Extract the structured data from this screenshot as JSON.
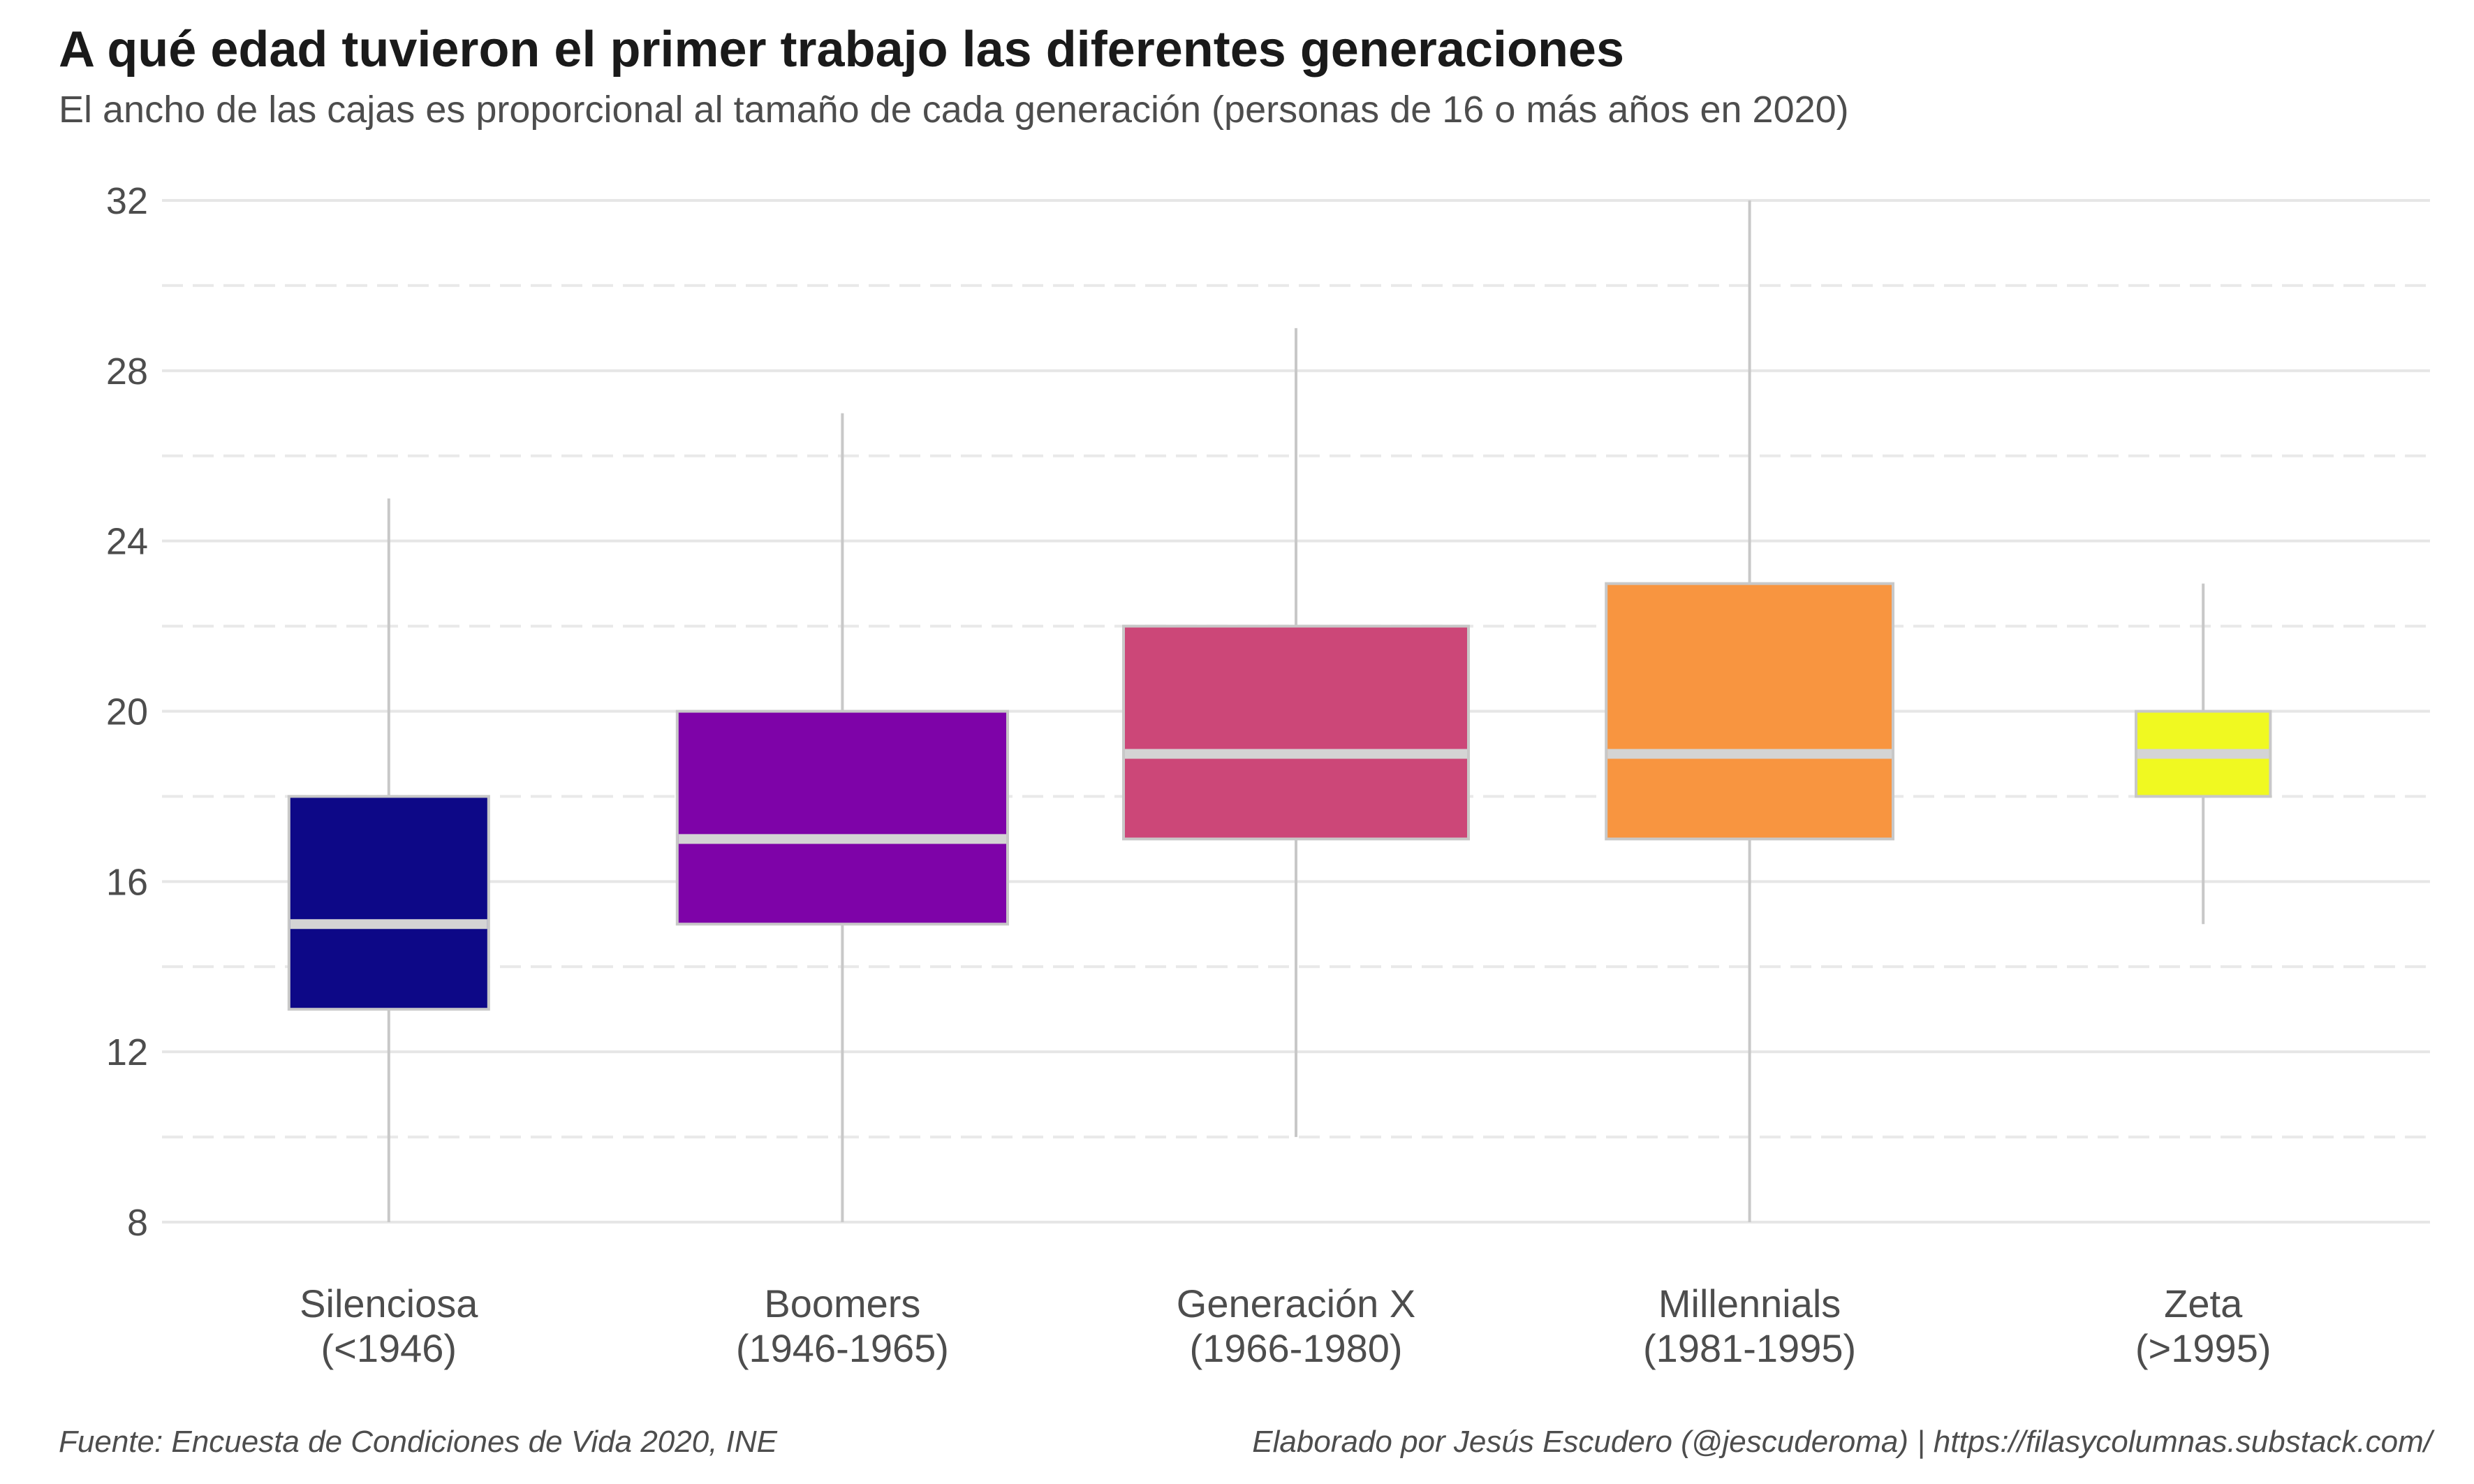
{
  "header": {
    "title": "A qué edad tuvieron el primer trabajo las diferentes generaciones",
    "subtitle": "El ancho de las cajas es proporcional al tamaño de cada generación (personas de 16 o más años en 2020)"
  },
  "footer": {
    "source": "Fuente: Encuesta de Condiciones de Vida 2020, INE",
    "credit": "Elaborado por Jesús Escudero (@jescuderoma) | https://filasycolumnas.substack.com/"
  },
  "colors": {
    "grid_major": "#e6e6e6",
    "grid_minor": "#e9e9e9",
    "whisker": "#c8c8c8",
    "box_border": "#c8c8c8",
    "median": "#d4d4d4",
    "axis_text": "#4d4d4d"
  },
  "chart_data": {
    "type": "boxplot",
    "title": "A qué edad tuvieron el primer trabajo las diferentes generaciones",
    "subtitle": "El ancho de las cajas es proporcional al tamaño de cada generación (personas de 16 o más años en 2020)",
    "xlabel": "",
    "ylabel": "",
    "ylim": [
      8,
      32
    ],
    "yticks": [
      8,
      12,
      16,
      20,
      24,
      28,
      32
    ],
    "grid": true,
    "legend": "none",
    "categories": [
      {
        "name": "Silenciosa",
        "years": "(<1946)",
        "min": 8,
        "q1": 13,
        "median": 15,
        "q3": 18,
        "max": 25,
        "relative_width": 0.55,
        "color": "#0d0887"
      },
      {
        "name": "Boomers",
        "years": "(1946-1965)",
        "min": 8,
        "q1": 15,
        "median": 17,
        "q3": 20,
        "max": 27,
        "relative_width": 0.91,
        "color": "#7e03a8"
      },
      {
        "name": "Generación X",
        "years": "(1966-1980)",
        "min": 10,
        "q1": 17,
        "median": 19,
        "q3": 22,
        "max": 29,
        "relative_width": 0.95,
        "color": "#cc4778"
      },
      {
        "name": "Millennials",
        "years": "(1981-1995)",
        "min": 8,
        "q1": 17,
        "median": 19,
        "q3": 23,
        "max": 32,
        "relative_width": 0.79,
        "color": "#f89540"
      },
      {
        "name": "Zeta",
        "years": "(>1995)",
        "min": 15,
        "q1": 18,
        "median": 19,
        "q3": 20,
        "max": 23,
        "relative_width": 0.37,
        "color": "#f0f921"
      }
    ]
  }
}
